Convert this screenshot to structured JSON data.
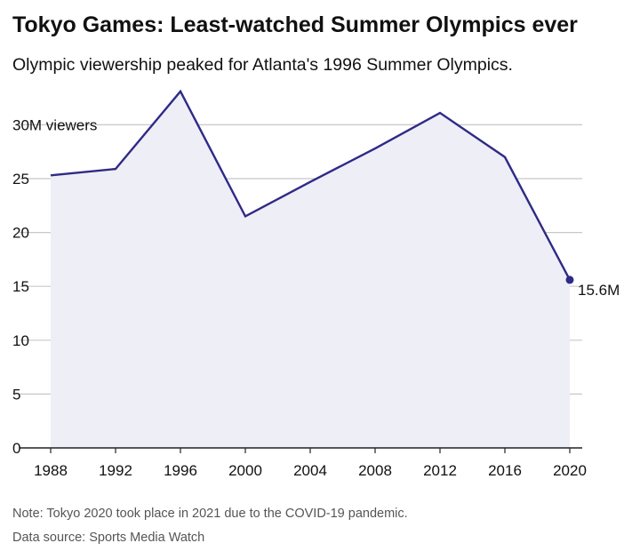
{
  "header": {
    "title": "Tokyo Games: Least-watched Summer Olympics ever",
    "subtitle": "Olympic viewership peaked for Atlanta's 1996 Summer Olympics."
  },
  "footer": {
    "note": "Note: Tokyo 2020 took place in 2021 due to the COVID-19 pandemic.",
    "source": "Data source: Sports Media Watch"
  },
  "colors": {
    "line": "#2e2a86",
    "area": "#eeeef6",
    "grid": "#c8c8c8",
    "text": "#111111"
  },
  "chart_data": {
    "type": "area",
    "title": "Tokyo Games: Least-watched Summer Olympics ever",
    "subtitle": "Olympic viewership peaked for Atlanta's 1996 Summer Olympics.",
    "xlabel": "",
    "ylabel": "",
    "x": [
      1988,
      1992,
      1996,
      2000,
      2004,
      2008,
      2012,
      2016,
      2020
    ],
    "x_tick_labels": [
      "1988",
      "1992",
      "1996",
      "2000",
      "2004",
      "2008",
      "2012",
      "2016",
      "2020"
    ],
    "series": [
      {
        "values": [
          25.3,
          25.9,
          33.1,
          21.5,
          24.7,
          27.8,
          31.1,
          27.0,
          15.6
        ]
      }
    ],
    "xlim": [
      1988,
      2020
    ],
    "ylim": [
      0,
      30
    ],
    "y_ticks": [
      0,
      5,
      10,
      15,
      20,
      25,
      30
    ],
    "y_tick_labels": [
      "0",
      "5",
      "10",
      "15",
      "20",
      "25",
      "30M viewers"
    ],
    "grid": true,
    "annotations": [
      {
        "x": 2020,
        "y": 15.6,
        "text": "15.6M"
      }
    ]
  }
}
